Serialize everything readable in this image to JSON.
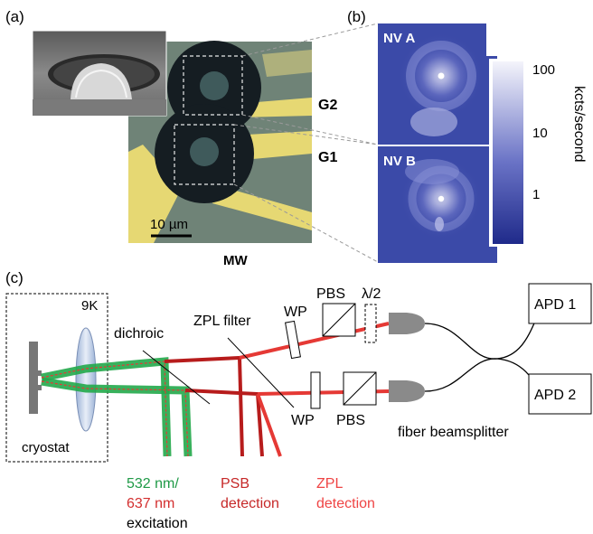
{
  "panels": {
    "a": {
      "label": "(a)",
      "gate_labels": [
        "G2",
        "G1"
      ],
      "scale_bar": "10 µm",
      "bottom_label": "MW"
    },
    "b": {
      "label": "(b)",
      "nv_labels": [
        "NV A",
        "NV B"
      ],
      "colorbar_ticks": [
        "100",
        "10",
        "1"
      ],
      "colorbar_unit": "kcts/second"
    },
    "c": {
      "label": "(c)",
      "temperature": "9K",
      "cryostat": "cryostat",
      "dichroic": "dichroic",
      "zpl_filter": "ZPL filter",
      "wp_top": "WP",
      "pbs_top": "PBS",
      "half_wave": "λ/2",
      "wp_bottom": "WP",
      "pbs_bottom": "PBS",
      "fiber_bs": "fiber beamsplitter",
      "apd1": "APD 1",
      "apd2": "APD 2",
      "excitation_line1": "532 nm/",
      "excitation_line2": "637 nm",
      "excitation_line3": "excitation",
      "psb_line1": "PSB",
      "psb_line2": "detection",
      "zpl_line1": "ZPL",
      "zpl_line2": "detection"
    }
  },
  "colors": {
    "green_beam": "#22a94a",
    "red_beam": "#e53935",
    "dark_red_beam": "#b71c1c",
    "excitation_green_text": "#1f9a47",
    "excitation_red_text": "#d32f2f",
    "psb_text": "#c62828",
    "zpl_text": "#ef4444",
    "gold_electrode": "#e6d873",
    "nv_map_bg": "#3b4aa8"
  }
}
